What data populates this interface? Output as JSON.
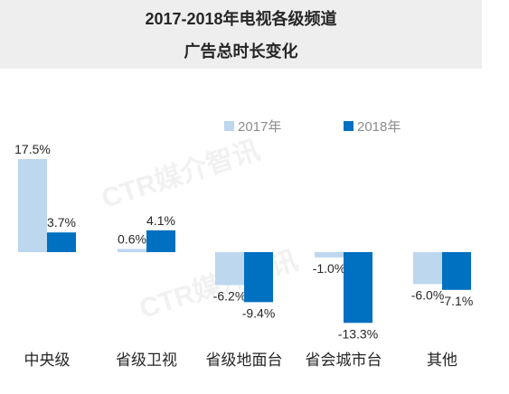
{
  "chart_data": {
    "type": "bar",
    "title": "2017-2018年电视各级频道",
    "subtitle": "广告总时长变化",
    "categories": [
      "中央级",
      "省级卫视",
      "省级地面台",
      "省会城市台",
      "其他"
    ],
    "series": [
      {
        "name": "2017年",
        "values": [
          17.5,
          0.6,
          -6.2,
          -1.0,
          -6.0
        ],
        "labels": [
          "17.5%",
          "0.6%",
          "-6.2%",
          "-1.0%",
          "-6.0%"
        ],
        "color": "#bdd7ee"
      },
      {
        "name": "2018年",
        "values": [
          3.7,
          4.1,
          -9.4,
          -13.3,
          -7.1
        ],
        "labels": [
          "3.7%",
          "4.1%",
          "-9.4%",
          "-13.3%",
          "-7.1%"
        ],
        "color": "#0070c0"
      }
    ],
    "ylim": [
      -14,
      18
    ],
    "legend_position": "top",
    "grid": false
  },
  "watermark": "CTR媒介智讯"
}
